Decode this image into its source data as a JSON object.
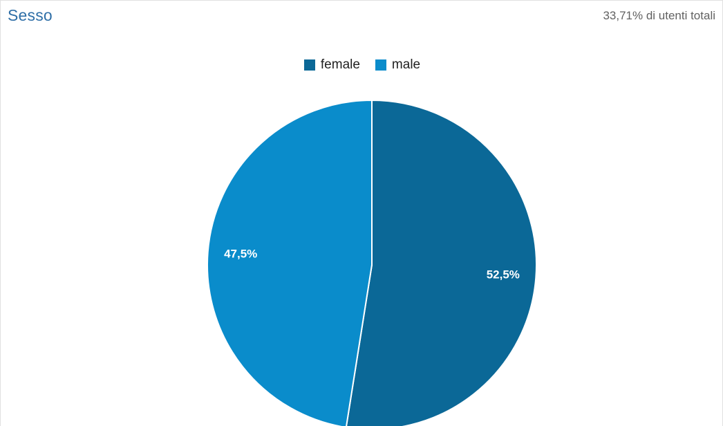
{
  "card": {
    "title": "Sesso",
    "subtitle": "33,71% di utenti totali"
  },
  "chart_data": {
    "type": "pie",
    "title": "Sesso",
    "categories": [
      "female",
      "male"
    ],
    "values": [
      52.5,
      47.5
    ],
    "labels": [
      "52,5%",
      "47,5%"
    ],
    "colors": [
      "#0b6897",
      "#0a8ccb"
    ],
    "legend_position": "top-center"
  }
}
